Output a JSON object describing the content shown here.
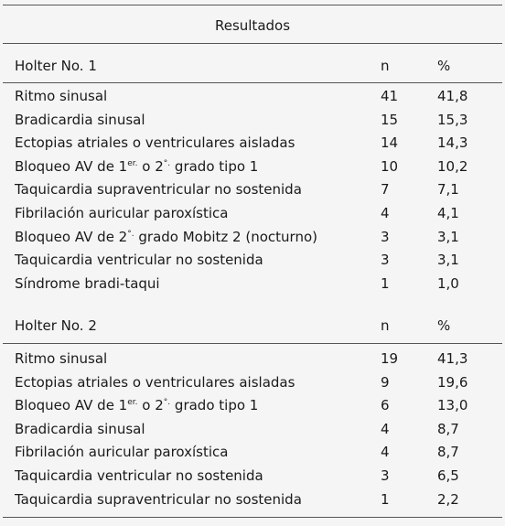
{
  "header": {
    "title": "Resultados"
  },
  "sections": [
    {
      "title": "Holter No. 1",
      "n_header": "n",
      "pct_header": "%",
      "rows": [
        {
          "label": [
            "Ritmo sinusal"
          ],
          "n": 41,
          "pct": "41,8"
        },
        {
          "label": [
            "Bradicardia sinusal"
          ],
          "n": 15,
          "pct": "15,3"
        },
        {
          "label": [
            "Ectopias atriales o ventriculares aisladas"
          ],
          "n": 14,
          "pct": "14,3"
        },
        {
          "label": [
            "Bloqueo AV de 1",
            "er.",
            " o 2",
            "°.",
            " grado tipo 1"
          ],
          "n": 10,
          "pct": "10,2"
        },
        {
          "label": [
            "Taquicardia supraventricular no sostenida"
          ],
          "n": 7,
          "pct": "7,1"
        },
        {
          "label": [
            "Fibrilación auricular paroxística"
          ],
          "n": 4,
          "pct": "4,1"
        },
        {
          "label": [
            "Bloqueo AV de 2",
            "°.",
            " grado Mobitz 2 (nocturno)"
          ],
          "n": 3,
          "pct": "3,1"
        },
        {
          "label": [
            "Taquicardia ventricular no sostenida"
          ],
          "n": 3,
          "pct": "3,1"
        },
        {
          "label": [
            "Síndrome bradi-taqui"
          ],
          "n": 1,
          "pct": "1,0"
        }
      ]
    },
    {
      "title": "Holter No. 2",
      "n_header": "n",
      "pct_header": "%",
      "rows": [
        {
          "label": [
            "Ritmo sinusal"
          ],
          "n": 19,
          "pct": "41,3"
        },
        {
          "label": [
            "Ectopias atriales o ventriculares aisladas"
          ],
          "n": 9,
          "pct": "19,6"
        },
        {
          "label": [
            "Bloqueo AV de 1",
            "er.",
            " o 2",
            "°.",
            " grado tipo 1"
          ],
          "n": 6,
          "pct": "13,0"
        },
        {
          "label": [
            "Bradicardia sinusal"
          ],
          "n": 4,
          "pct": "8,7"
        },
        {
          "label": [
            "Fibrilación auricular paroxística"
          ],
          "n": 4,
          "pct": "8,7"
        },
        {
          "label": [
            "Taquicardia ventricular no sostenida"
          ],
          "n": 3,
          "pct": "6,5"
        },
        {
          "label": [
            "Taquicardia supraventricular no sostenida"
          ],
          "n": 1,
          "pct": "2,2"
        }
      ]
    }
  ]
}
